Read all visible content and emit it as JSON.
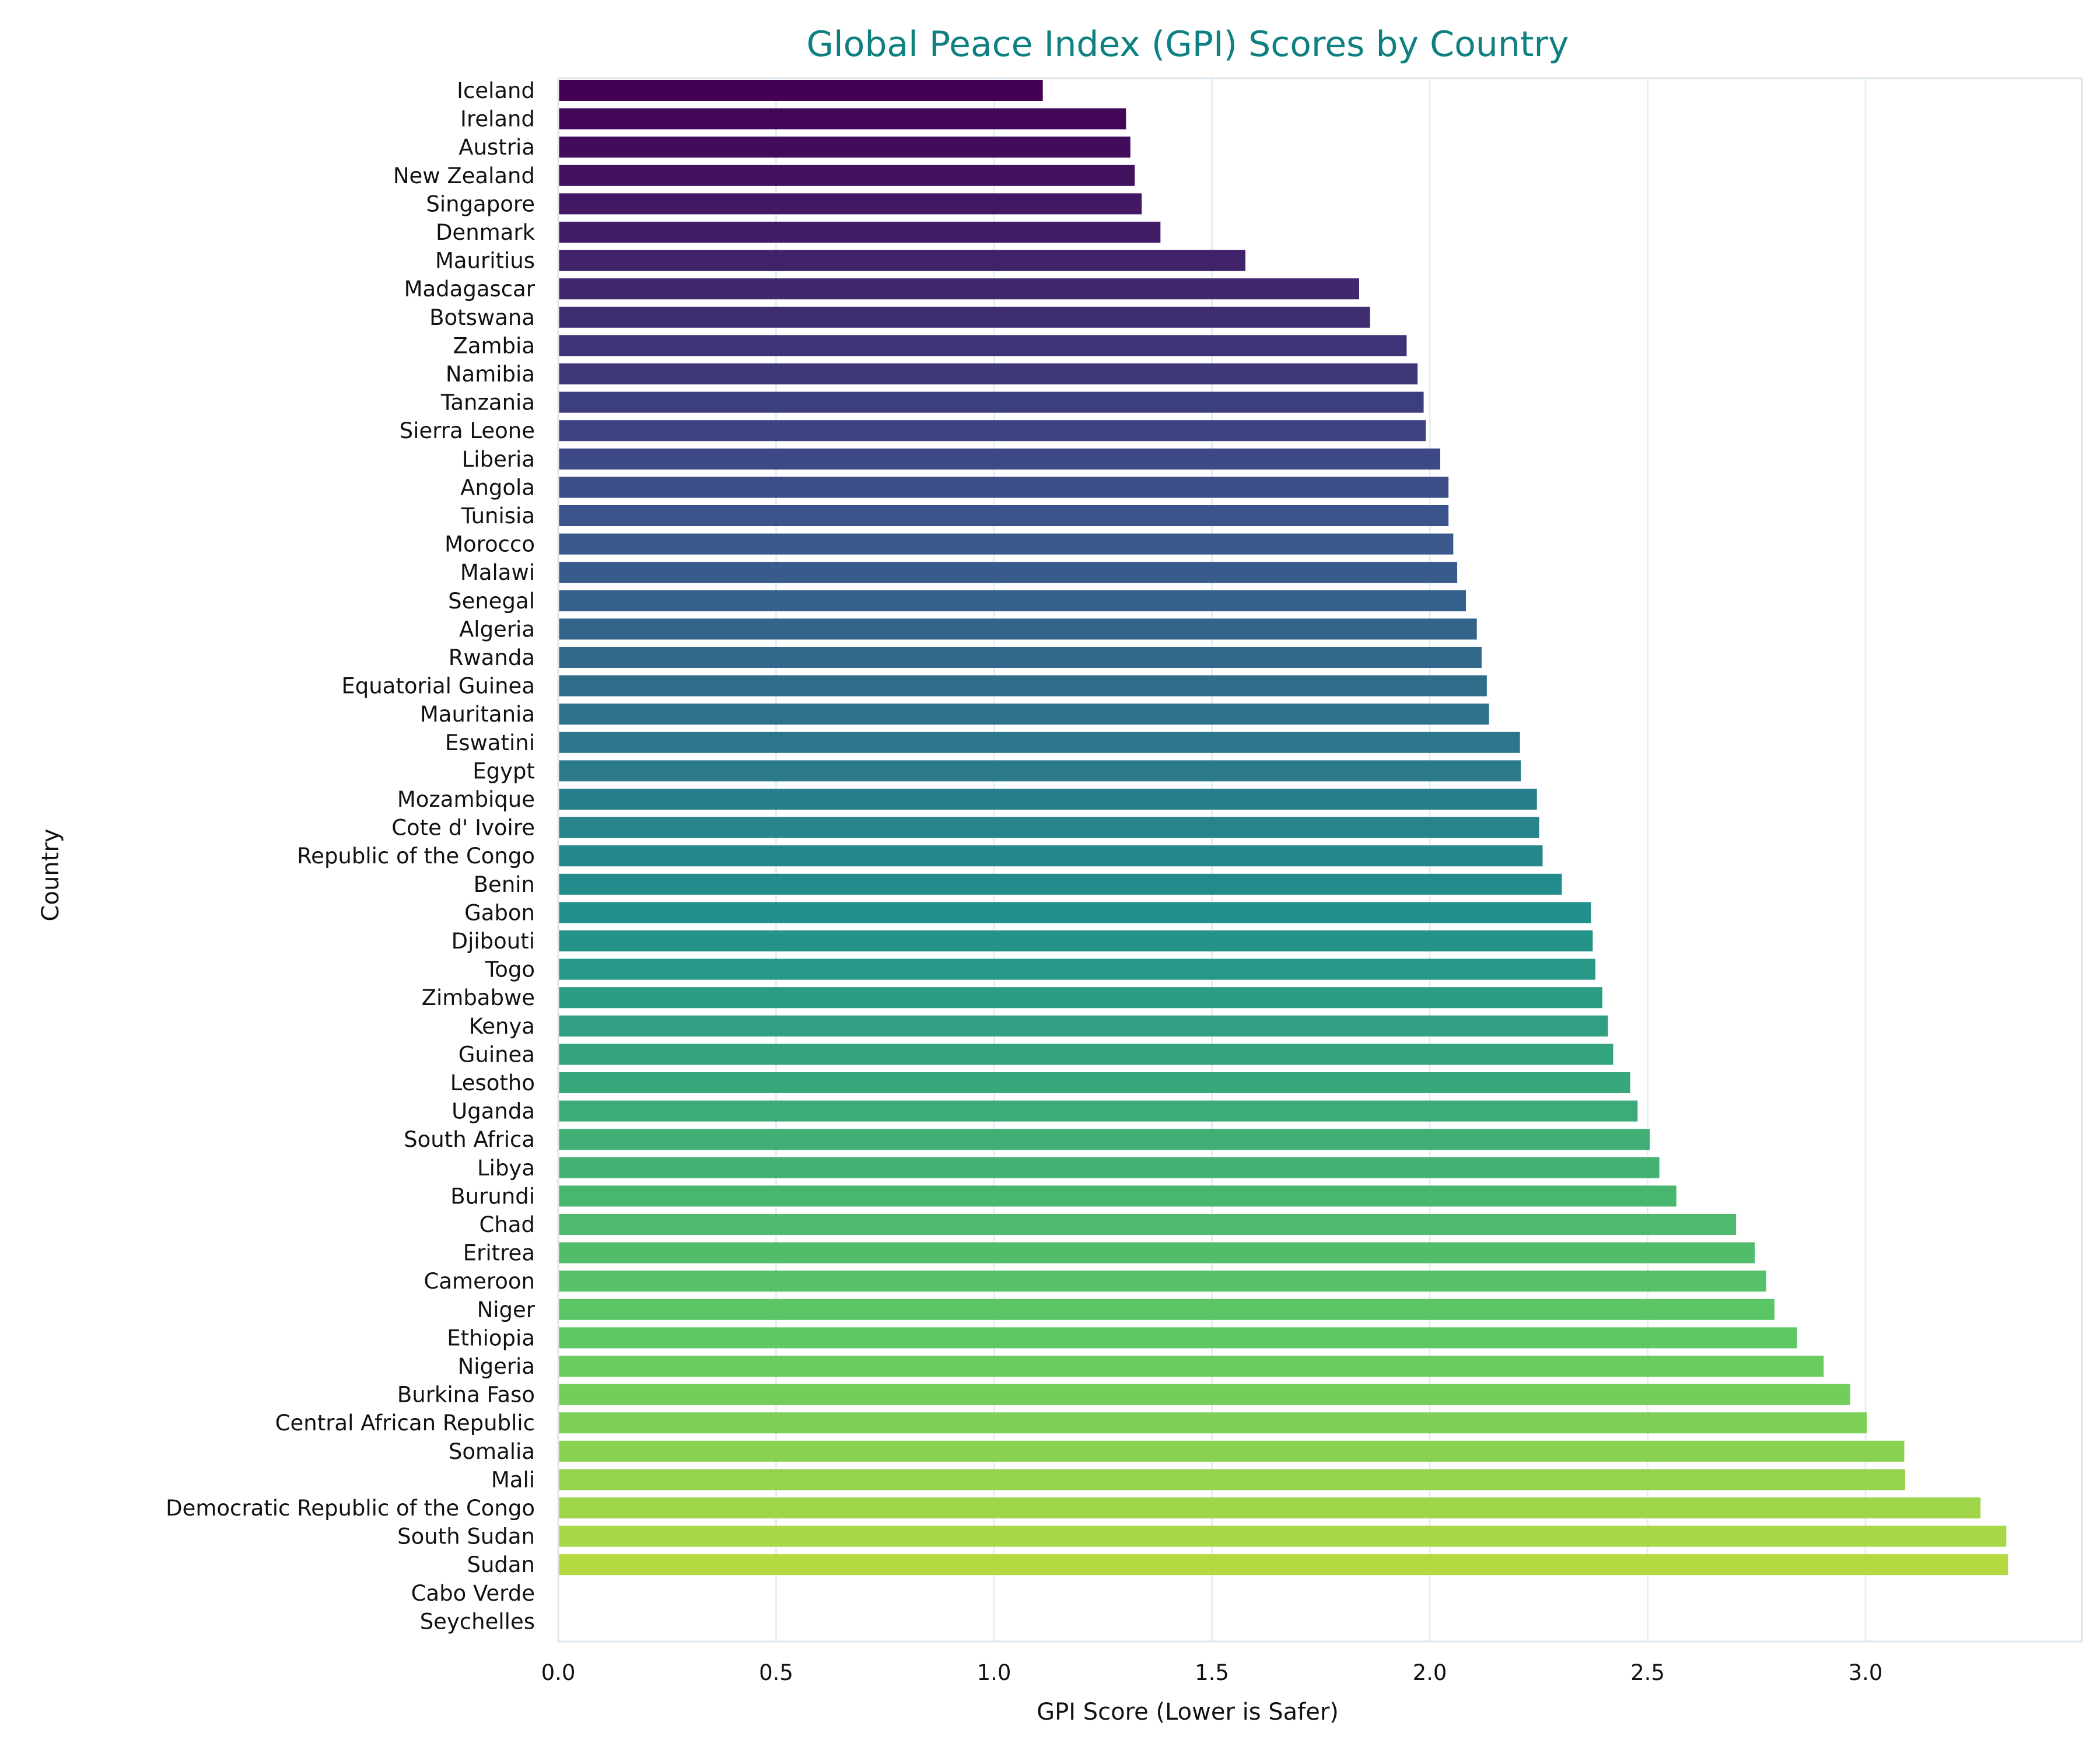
{
  "chart_data": {
    "type": "bar",
    "orientation": "horizontal",
    "title": "Global Peace Index (GPI) Scores by Country",
    "xlabel": "GPI Score (Lower is Safer)",
    "ylabel": "Country",
    "xlim": [
      0,
      3.5
    ],
    "xticks": [
      "0.0",
      "0.5",
      "1.0",
      "1.5",
      "2.0",
      "2.5",
      "3.0"
    ],
    "grid": "vertical",
    "colormap": "viridis",
    "categories": [
      "Iceland",
      "Ireland",
      "Austria",
      "New Zealand",
      "Singapore",
      "Denmark",
      "Mauritius",
      "Madagascar",
      "Botswana",
      "Zambia",
      "Namibia",
      "Tanzania",
      "Sierra Leone",
      "Liberia",
      "Angola",
      "Tunisia",
      "Morocco",
      "Malawi",
      "Senegal",
      "Algeria",
      "Rwanda",
      "Equatorial Guinea",
      "Mauritania",
      "Eswatini",
      "Egypt",
      "Mozambique",
      "Cote d' Ivoire",
      "Republic of the Congo",
      "Benin",
      "Gabon",
      "Djibouti",
      "Togo",
      "Zimbabwe",
      "Kenya",
      "Guinea",
      "Lesotho",
      "Uganda",
      "South Africa",
      "Libya",
      "Burundi",
      "Chad",
      "Eritrea",
      "Cameroon",
      "Niger",
      "Ethiopia",
      "Nigeria",
      "Burkina Faso",
      "Central African Republic",
      "Somalia",
      "Mali",
      "Democratic Republic of the Congo",
      "South Sudan",
      "Sudan",
      "Cabo Verde",
      "Seychelles"
    ],
    "values": [
      1.112,
      1.303,
      1.313,
      1.323,
      1.339,
      1.382,
      1.577,
      1.838,
      1.863,
      1.947,
      1.972,
      1.986,
      1.991,
      2.024,
      2.043,
      2.043,
      2.054,
      2.063,
      2.083,
      2.108,
      2.119,
      2.131,
      2.136,
      2.207,
      2.209,
      2.246,
      2.251,
      2.259,
      2.303,
      2.37,
      2.374,
      2.38,
      2.396,
      2.409,
      2.421,
      2.46,
      2.477,
      2.505,
      2.527,
      2.566,
      2.703,
      2.746,
      2.772,
      2.791,
      2.843,
      2.904,
      2.965,
      3.003,
      3.089,
      3.091,
      3.264,
      3.323,
      3.327,
      null,
      null
    ]
  }
}
